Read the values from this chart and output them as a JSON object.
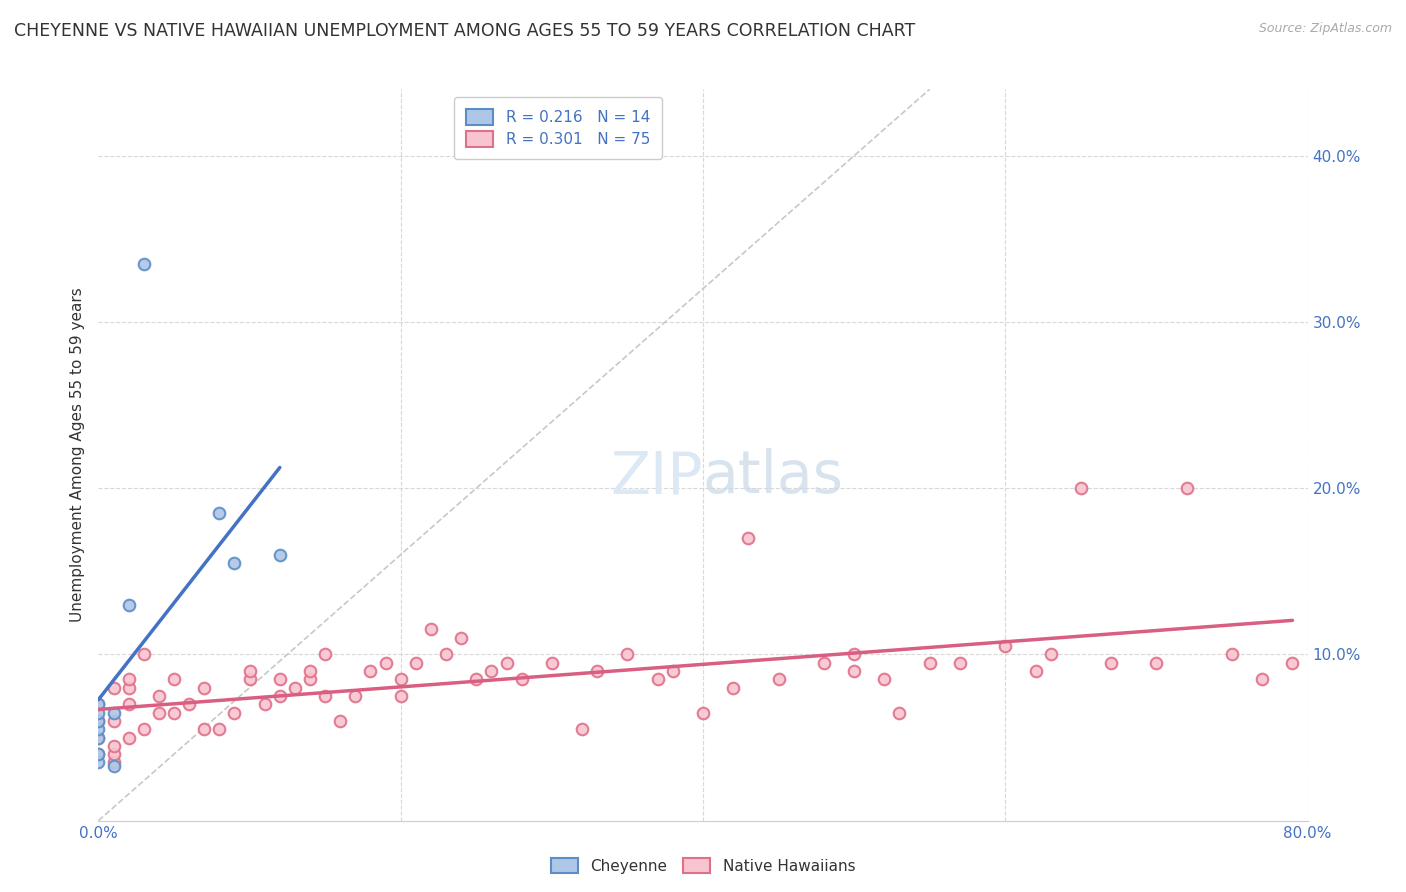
{
  "title": "CHEYENNE VS NATIVE HAWAIIAN UNEMPLOYMENT AMONG AGES 55 TO 59 YEARS CORRELATION CHART",
  "source": "Source: ZipAtlas.com",
  "ylabel": "Unemployment Among Ages 55 to 59 years",
  "xlim": [
    0.0,
    0.8
  ],
  "ylim": [
    0.0,
    0.44
  ],
  "cheyenne_color": "#aec6e8",
  "cheyenne_edge_color": "#5b8ec4",
  "native_hawaiian_color": "#f7c5d0",
  "native_hawaiian_edge_color": "#e0708a",
  "cheyenne_line_color": "#4472c4",
  "native_hawaiian_line_color": "#d95f82",
  "diag_line_color": "#c8c8c8",
  "R_cheyenne": 0.216,
  "N_cheyenne": 14,
  "R_native": 0.301,
  "N_native": 75,
  "cheyenne_x": [
    0.0,
    0.0,
    0.0,
    0.0,
    0.0,
    0.0,
    0.0,
    0.01,
    0.01,
    0.02,
    0.03,
    0.08,
    0.09,
    0.12
  ],
  "cheyenne_y": [
    0.035,
    0.04,
    0.05,
    0.055,
    0.06,
    0.065,
    0.07,
    0.033,
    0.065,
    0.13,
    0.335,
    0.185,
    0.155,
    0.16
  ],
  "native_hawaiian_x": [
    0.0,
    0.0,
    0.0,
    0.0,
    0.01,
    0.01,
    0.01,
    0.01,
    0.01,
    0.02,
    0.02,
    0.02,
    0.02,
    0.03,
    0.03,
    0.04,
    0.04,
    0.05,
    0.05,
    0.06,
    0.07,
    0.07,
    0.08,
    0.09,
    0.1,
    0.1,
    0.11,
    0.12,
    0.12,
    0.13,
    0.14,
    0.14,
    0.15,
    0.15,
    0.16,
    0.17,
    0.18,
    0.19,
    0.2,
    0.2,
    0.21,
    0.22,
    0.23,
    0.24,
    0.25,
    0.26,
    0.27,
    0.28,
    0.3,
    0.32,
    0.33,
    0.35,
    0.37,
    0.38,
    0.4,
    0.42,
    0.43,
    0.45,
    0.48,
    0.5,
    0.5,
    0.52,
    0.53,
    0.55,
    0.57,
    0.6,
    0.62,
    0.63,
    0.65,
    0.67,
    0.7,
    0.72,
    0.75,
    0.77,
    0.79
  ],
  "native_hawaiian_y": [
    0.04,
    0.05,
    0.06,
    0.07,
    0.035,
    0.04,
    0.045,
    0.06,
    0.08,
    0.05,
    0.07,
    0.08,
    0.085,
    0.055,
    0.1,
    0.065,
    0.075,
    0.065,
    0.085,
    0.07,
    0.055,
    0.08,
    0.055,
    0.065,
    0.085,
    0.09,
    0.07,
    0.075,
    0.085,
    0.08,
    0.085,
    0.09,
    0.075,
    0.1,
    0.06,
    0.075,
    0.09,
    0.095,
    0.075,
    0.085,
    0.095,
    0.115,
    0.1,
    0.11,
    0.085,
    0.09,
    0.095,
    0.085,
    0.095,
    0.055,
    0.09,
    0.1,
    0.085,
    0.09,
    0.065,
    0.08,
    0.17,
    0.085,
    0.095,
    0.09,
    0.1,
    0.085,
    0.065,
    0.095,
    0.095,
    0.105,
    0.09,
    0.1,
    0.2,
    0.095,
    0.095,
    0.2,
    0.1,
    0.085,
    0.095
  ],
  "background_color": "#ffffff",
  "grid_color": "#d8d8d8",
  "title_fontsize": 12.5,
  "label_fontsize": 11,
  "tick_fontsize": 11,
  "legend_fontsize": 11,
  "marker_size": 70,
  "marker_edge_width": 1.5
}
